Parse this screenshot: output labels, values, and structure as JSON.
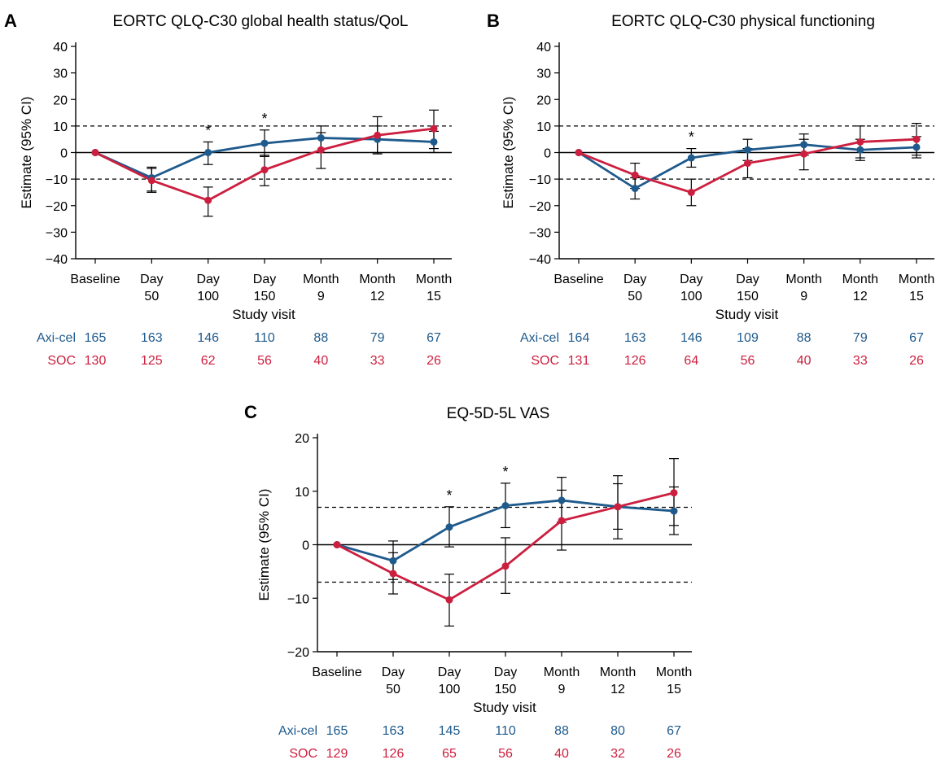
{
  "colors": {
    "axicel": "#1f5a8c",
    "soc": "#cc1f3f",
    "axis": "#000000"
  },
  "chart_data": [
    {
      "type": "line",
      "panel_letter": "A",
      "title": "EORTC QLQ-C30 global health status/QoL",
      "xlabel": "Study visit",
      "ylabel": "Estimate (95% CI)",
      "categories": [
        [
          "Baseline"
        ],
        [
          "Day",
          "50"
        ],
        [
          "Day",
          "100"
        ],
        [
          "Day",
          "150"
        ],
        [
          "Month",
          "9"
        ],
        [
          "Month",
          "12"
        ],
        [
          "Month",
          "15"
        ]
      ],
      "ylim": [
        -40,
        40
      ],
      "yticks": [
        40,
        30,
        20,
        10,
        0,
        -10,
        -20,
        -30,
        -40
      ],
      "ytick_labels": [
        "40",
        "30",
        "20",
        "10",
        "0",
        "−10",
        "−20",
        "−30",
        "−40"
      ],
      "reference_lines": [
        10,
        -10
      ],
      "significance_marks": [
        2,
        3
      ],
      "series": [
        {
          "name": "Axi-cel",
          "color": "axicel",
          "values": [
            0,
            -9.5,
            0,
            3.5,
            5.5,
            5,
            4
          ],
          "ci_low": [
            null,
            -14.5,
            -4.5,
            -1.5,
            0,
            0,
            0
          ],
          "ci_high": [
            null,
            -5.5,
            4,
            8.5,
            10,
            10,
            8
          ],
          "n": [
            165,
            163,
            146,
            110,
            88,
            79,
            67
          ]
        },
        {
          "name": "SOC",
          "color": "soc",
          "values": [
            0,
            -10.5,
            -18,
            -6.5,
            1,
            6.5,
            9
          ],
          "ci_low": [
            null,
            -15,
            -24,
            -12.5,
            -6,
            -0.5,
            1.5
          ],
          "ci_high": [
            null,
            -6,
            -13,
            -1,
            7.5,
            13.5,
            16
          ],
          "n": [
            130,
            125,
            62,
            56,
            40,
            33,
            26
          ]
        }
      ]
    },
    {
      "type": "line",
      "panel_letter": "B",
      "title": "EORTC QLQ-C30 physical functioning",
      "xlabel": "Study visit",
      "ylabel": "Estimate (95% CI)",
      "categories": [
        [
          "Baseline"
        ],
        [
          "Day",
          "50"
        ],
        [
          "Day",
          "100"
        ],
        [
          "Day",
          "150"
        ],
        [
          "Month",
          "9"
        ],
        [
          "Month",
          "12"
        ],
        [
          "Month",
          "15"
        ]
      ],
      "ylim": [
        -40,
        40
      ],
      "yticks": [
        40,
        30,
        20,
        10,
        0,
        -10,
        -20,
        -30,
        -40
      ],
      "ytick_labels": [
        "40",
        "30",
        "20",
        "10",
        "0",
        "−10",
        "−20",
        "−30",
        "−40"
      ],
      "reference_lines": [
        10,
        -10
      ],
      "significance_marks": [
        2
      ],
      "series": [
        {
          "name": "Axi-cel",
          "color": "axicel",
          "values": [
            0,
            -13.5,
            -2,
            1,
            3,
            1,
            2
          ],
          "ci_low": [
            null,
            -17.5,
            -5.5,
            -3,
            -1,
            -3,
            -2
          ],
          "ci_high": [
            null,
            -9.5,
            1.5,
            5,
            7,
            5,
            6
          ],
          "n": [
            164,
            163,
            146,
            109,
            88,
            79,
            67
          ]
        },
        {
          "name": "SOC",
          "color": "soc",
          "values": [
            0,
            -8.5,
            -15,
            -4,
            -0.5,
            4,
            5
          ],
          "ci_low": [
            null,
            -13.5,
            -20,
            -9.5,
            -6.5,
            -2,
            -1
          ],
          "ci_high": [
            null,
            -4,
            -10,
            1.5,
            5,
            10,
            11
          ],
          "n": [
            131,
            126,
            64,
            56,
            40,
            33,
            26
          ]
        }
      ]
    },
    {
      "type": "line",
      "panel_letter": "C",
      "title": "EQ-5D-5L VAS",
      "xlabel": "Study visit",
      "ylabel": "Estimate (95% CI)",
      "categories": [
        [
          "Baseline"
        ],
        [
          "Day",
          "50"
        ],
        [
          "Day",
          "100"
        ],
        [
          "Day",
          "150"
        ],
        [
          "Month",
          "9"
        ],
        [
          "Month",
          "12"
        ],
        [
          "Month",
          "15"
        ]
      ],
      "ylim": [
        -20,
        20
      ],
      "yticks": [
        20,
        10,
        0,
        -10,
        -20
      ],
      "ytick_labels": [
        "20",
        "10",
        "0",
        "−10",
        "−20"
      ],
      "reference_lines": [
        7,
        -7
      ],
      "significance_marks": [
        2,
        3
      ],
      "series": [
        {
          "name": "Axi-cel",
          "color": "axicel",
          "values": [
            0,
            -3,
            3.3,
            7.3,
            8.3,
            7.1,
            6.3
          ],
          "ci_low": [
            null,
            -6.5,
            -0.4,
            3.2,
            4.2,
            2.9,
            1.9
          ],
          "ci_high": [
            null,
            0.7,
            7.1,
            11.5,
            12.6,
            11.4,
            10.8
          ],
          "n": [
            165,
            163,
            145,
            110,
            88,
            80,
            67
          ]
        },
        {
          "name": "SOC",
          "color": "soc",
          "values": [
            0,
            -5.4,
            -10.3,
            -4,
            4.5,
            7.1,
            9.7
          ],
          "ci_low": [
            null,
            -9.2,
            -15.2,
            -9.1,
            -1,
            1.1,
            3.6
          ],
          "ci_high": [
            null,
            -1.5,
            -5.5,
            1.3,
            10.2,
            12.9,
            16.1
          ],
          "n": [
            129,
            126,
            65,
            56,
            40,
            32,
            26
          ]
        }
      ]
    }
  ]
}
